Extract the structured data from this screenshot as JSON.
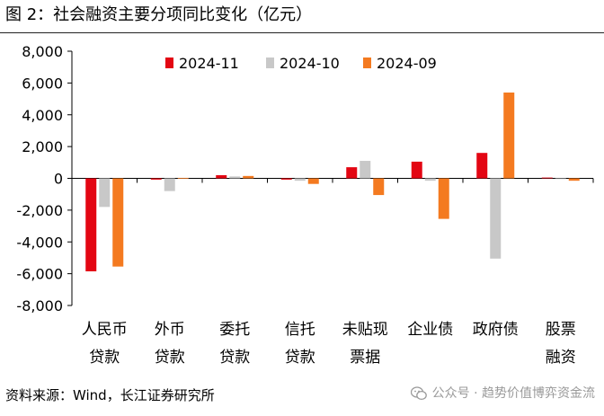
{
  "title": "图 2：社会融资主要分项同比变化（亿元）",
  "source": "资料来源：Wind，长江证券研究所",
  "watermark": "公众号 · 趋势价值博弈资金流",
  "colors": {
    "s1": "#e30613",
    "s2": "#c8c8c8",
    "s3": "#f47a20",
    "axis": "#000000"
  },
  "chart_data": {
    "type": "bar",
    "title": "社会融资主要分项同比变化（亿元）",
    "xlabel": "",
    "ylabel": "",
    "ylim": [
      -8000,
      8000
    ],
    "yticks": [
      -8000,
      -6000,
      -4000,
      -2000,
      0,
      2000,
      4000,
      6000,
      8000
    ],
    "ytick_labels": [
      "-8,000",
      "-6,000",
      "-4,000",
      "-2,000",
      "0",
      "2,000",
      "4,000",
      "6,000",
      "8,000"
    ],
    "categories": [
      [
        "人民币",
        "贷款"
      ],
      [
        "外币",
        "贷款"
      ],
      [
        "委托",
        "贷款"
      ],
      [
        "信托",
        "贷款"
      ],
      [
        "未贴现",
        "票据"
      ],
      [
        "企业债"
      ],
      [
        "政府债"
      ],
      [
        "股票",
        "融资"
      ]
    ],
    "legend_position": "top",
    "series": [
      {
        "name": "2024-11",
        "color": "#e30613",
        "values": [
          -5850,
          -80,
          200,
          -80,
          700,
          1050,
          1600,
          50
        ]
      },
      {
        "name": "2024-10",
        "color": "#c8c8c8",
        "values": [
          -1800,
          -800,
          120,
          -150,
          1100,
          -150,
          -5050,
          -30
        ]
      },
      {
        "name": "2024-09",
        "color": "#f47a20",
        "values": [
          -5550,
          30,
          150,
          -350,
          -1050,
          -2550,
          5400,
          -150
        ]
      }
    ]
  }
}
